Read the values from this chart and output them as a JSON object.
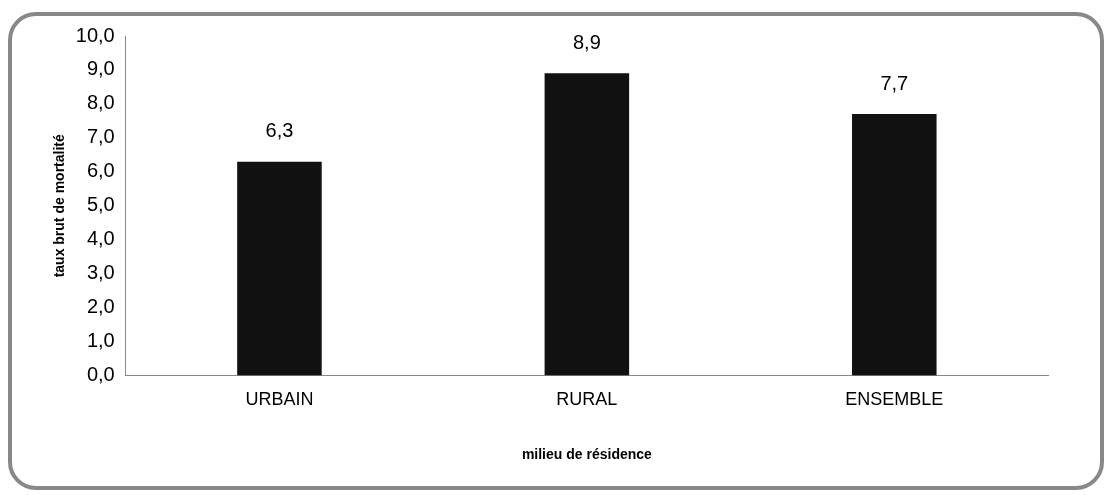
{
  "chart_data": {
    "type": "bar",
    "xlabel": "milieu de résidence",
    "ylabel": "taux brut de mortalité",
    "categories": [
      "URBAIN",
      "RURAL",
      "ENSEMBLE"
    ],
    "values": [
      6.3,
      8.9,
      7.7
    ],
    "color": "#111111",
    "value_labels": [
      "6,3",
      "8,9",
      "7,7"
    ],
    "ylim": [
      0,
      10
    ],
    "yticks": [
      {
        "value": 0,
        "label": "0,0"
      },
      {
        "value": 1,
        "label": "1,0"
      },
      {
        "value": 2,
        "label": "2,0"
      },
      {
        "value": 3,
        "label": "3,0"
      },
      {
        "value": 4,
        "label": "4,0"
      },
      {
        "value": 5,
        "label": "5,0"
      },
      {
        "value": 6,
        "label": "6,0"
      },
      {
        "value": 7,
        "label": "7,0"
      },
      {
        "value": 8,
        "label": "8,0"
      },
      {
        "value": 9,
        "label": "9,0"
      },
      {
        "value": 10,
        "label": "10,0"
      }
    ],
    "grid": false,
    "legend": false
  }
}
